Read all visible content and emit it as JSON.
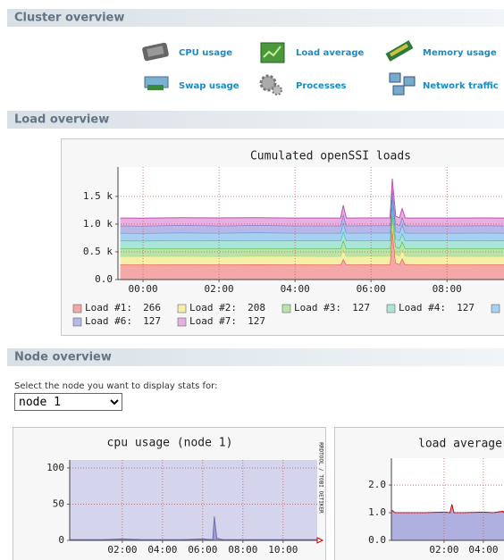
{
  "cluster_overview": {
    "title": "Cluster overview",
    "links": [
      "CPU usage",
      "Load average",
      "Memory usage",
      "Swap usage",
      "Processes",
      "Network traffic"
    ]
  },
  "load_overview": {
    "title": "Load overview"
  },
  "node_overview": {
    "title": "Node overview",
    "prompt": "Select the node you want to display stats for:",
    "selected_node": "node 1"
  },
  "chart_data": [
    {
      "type": "area",
      "stacked": true,
      "title": "Cumulated openSSI loads",
      "grid": true,
      "x": [
        -0.6,
        0,
        1,
        2,
        3,
        4,
        5,
        5.2,
        5.27,
        5.35,
        6,
        6.5,
        6.56,
        6.65,
        6.75,
        6.82,
        6.9,
        7,
        8,
        9,
        9.5
      ],
      "xlim": [
        -0.66,
        9.5
      ],
      "xticks": [
        {
          "value": 0,
          "label": "00:00"
        },
        {
          "value": 2,
          "label": "02:00"
        },
        {
          "value": 4,
          "label": "04:00"
        },
        {
          "value": 6,
          "label": "06:00"
        },
        {
          "value": 8,
          "label": "08:00"
        }
      ],
      "ylim": [
        0,
        2030
      ],
      "yticks": [
        {
          "value": 0,
          "label": "0.0"
        },
        {
          "value": 500,
          "label": "0.5 k"
        },
        {
          "value": 1000,
          "label": "1.0 k"
        },
        {
          "value": 1500,
          "label": "1.5 k"
        }
      ],
      "series": [
        {
          "name": "Load #1:",
          "legend_value": "266",
          "color": "#f4a8a8",
          "line_color": "#e04040",
          "values": [
            270,
            268,
            272,
            270,
            274,
            270,
            268,
            270,
            370,
            270,
            272,
            270,
            900,
            300,
            275,
            380,
            272,
            270,
            268,
            270,
            270
          ]
        },
        {
          "name": "Load #2:",
          "legend_value": "208",
          "color": "#f4f0a8",
          "line_color": "#d8c840",
          "values": [
            150,
            152,
            150,
            148,
            150,
            152,
            150,
            150,
            170,
            150,
            150,
            152,
            160,
            150,
            150,
            160,
            150,
            150,
            152,
            150,
            150
          ]
        },
        {
          "name": "Load #3:",
          "legend_value": "127",
          "color": "#b8e4a8",
          "line_color": "#50b040",
          "values": [
            140,
            140,
            142,
            140,
            140,
            138,
            140,
            140,
            170,
            140,
            140,
            140,
            150,
            140,
            140,
            150,
            140,
            140,
            140,
            142,
            140
          ]
        },
        {
          "name": "Load #4:",
          "legend_value": "127",
          "color": "#a8e4d8",
          "line_color": "#30b0a0",
          "values": [
            140,
            138,
            140,
            142,
            140,
            140,
            142,
            140,
            160,
            140,
            140,
            140,
            150,
            140,
            140,
            150,
            140,
            140,
            140,
            140,
            140
          ]
        },
        {
          "name": null,
          "legend_value": null,
          "color": "#a8d0f0",
          "line_color": "#4090d0",
          "values": [
            140,
            140,
            140,
            140,
            142,
            140,
            140,
            140,
            160,
            140,
            140,
            140,
            150,
            140,
            140,
            150,
            140,
            140,
            140,
            140,
            140
          ]
        },
        {
          "name": "Load #6:",
          "legend_value": "127",
          "color": "#b8b8e8",
          "line_color": "#6060c0",
          "values": [
            130,
            130,
            132,
            130,
            130,
            130,
            130,
            130,
            150,
            130,
            130,
            130,
            140,
            130,
            130,
            140,
            130,
            130,
            130,
            130,
            130
          ]
        },
        {
          "name": "Load #7:",
          "legend_value": "127",
          "color": "#e8b0e0",
          "line_color": "#c050b0",
          "values": [
            140,
            140,
            140,
            142,
            140,
            140,
            140,
            140,
            160,
            140,
            140,
            140,
            170,
            140,
            140,
            150,
            140,
            140,
            140,
            140,
            140
          ]
        }
      ]
    },
    {
      "type": "area",
      "title": "cpu usage (node 1)",
      "side_label": "RRDTOOL / TOBI OETIKER",
      "grid": true,
      "plot_color": "#d4d4ec",
      "x": [
        -0.6,
        0,
        1,
        2,
        3,
        4,
        5,
        6,
        6.5,
        6.58,
        6.7,
        7,
        8,
        9,
        10,
        11,
        11.7
      ],
      "xlim": [
        -0.62,
        11.7
      ],
      "xticks": [
        {
          "value": 2,
          "label": "02:00"
        },
        {
          "value": 4,
          "label": "04:00"
        },
        {
          "value": 6,
          "label": "06:00"
        },
        {
          "value": 8,
          "label": "08:00"
        },
        {
          "value": 10,
          "label": "10:00"
        }
      ],
      "ylim": [
        0,
        111
      ],
      "yticks": [
        0,
        50,
        100
      ],
      "series": [
        {
          "color": "#9c9ccc",
          "line_color": "#7070b8",
          "values": [
            1,
            1,
            1,
            2,
            1,
            1,
            1,
            2,
            1,
            33,
            3,
            1,
            1,
            1,
            1,
            1,
            1
          ]
        }
      ]
    },
    {
      "type": "area",
      "title": "load average",
      "grid": true,
      "x": [
        -0.68,
        -0.5,
        0,
        1,
        2,
        2.3,
        2.4,
        2.5,
        3,
        4,
        4.5,
        5,
        5.05
      ],
      "xlim": [
        -0.68,
        5.05
      ],
      "xticks": [
        {
          "value": 2,
          "label": "02:00"
        },
        {
          "value": 4,
          "label": "04:00"
        }
      ],
      "ylim": [
        0,
        2.97
      ],
      "yticks": [
        {
          "value": 0,
          "label": "0.0"
        },
        {
          "value": 1,
          "label": "1.0"
        },
        {
          "value": 2,
          "label": "2.0"
        }
      ],
      "series": [
        {
          "color": "#b0b0e0",
          "line_color": "#cc0000",
          "values": [
            1.1,
            1.0,
            1.0,
            1.0,
            1.02,
            1.0,
            1.3,
            1.0,
            1.0,
            1.02,
            1.0,
            1.05,
            1.0
          ]
        }
      ]
    }
  ]
}
